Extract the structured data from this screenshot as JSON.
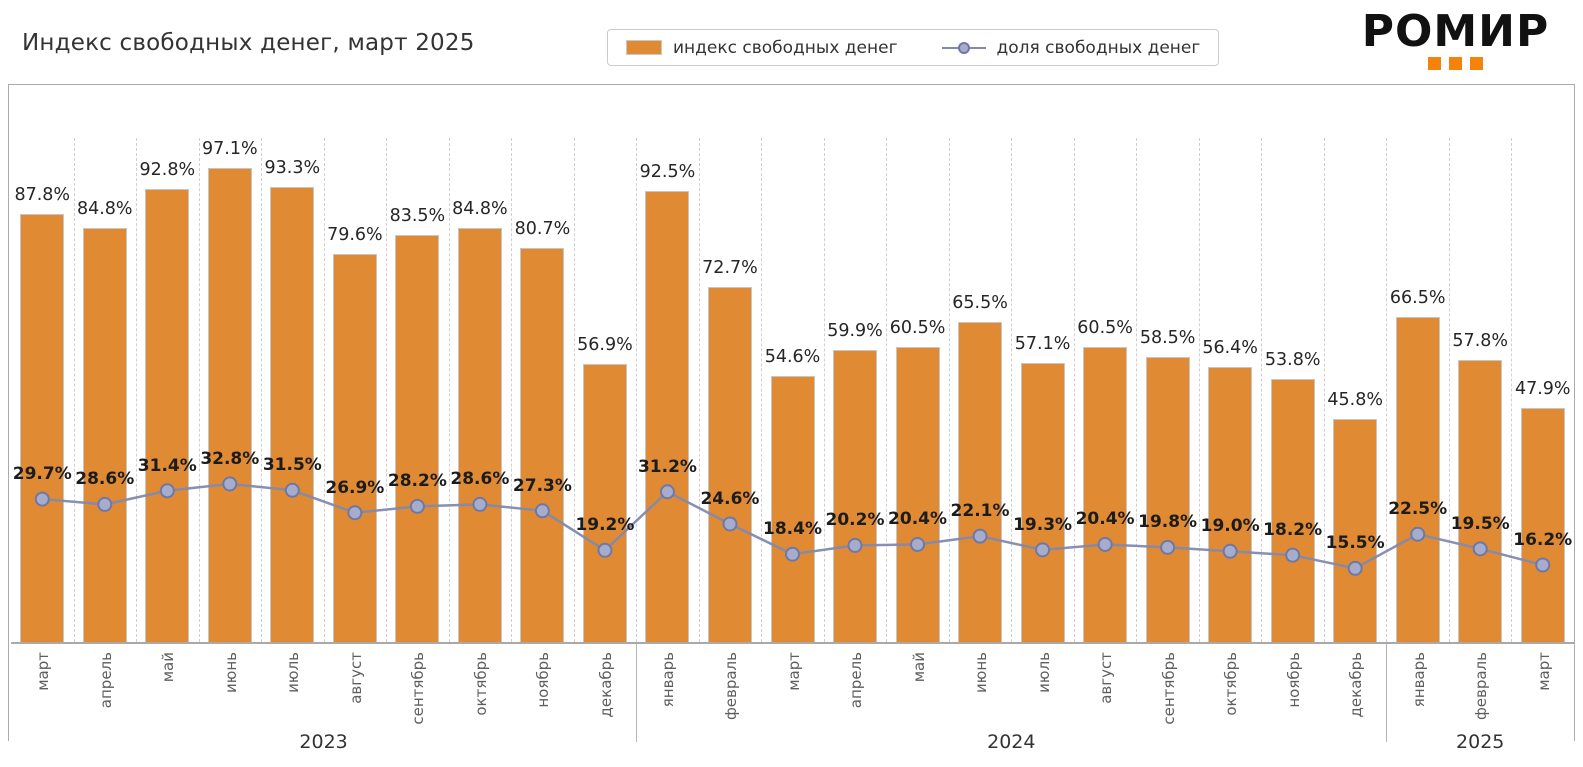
{
  "logo": {
    "text": "РОМИР",
    "accent_color": "#F5820B"
  },
  "chart_data": {
    "type": "combo-bar-line",
    "title": "Индекс свободных денег, март 2025",
    "value_suffix": "%",
    "grid": "vertical-dashed",
    "legend_position": "top-center",
    "ylim": [
      0,
      105
    ],
    "colors": {
      "bar": "#E08A33",
      "line": "#8289AF",
      "marker_fill": "#A6ADCC",
      "marker_stroke": "#6F78A4"
    },
    "groups": [
      {
        "year": "2023",
        "months": [
          "март",
          "апрель",
          "май",
          "июнь",
          "июль",
          "август",
          "сентябрь",
          "октябрь",
          "ноябрь",
          "декабрь"
        ]
      },
      {
        "year": "2024",
        "months": [
          "январь",
          "февраль",
          "март",
          "апрель",
          "май",
          "июнь",
          "июль",
          "август",
          "сентябрь",
          "октябрь",
          "ноябрь",
          "декабрь"
        ]
      },
      {
        "year": "2025",
        "months": [
          "январь",
          "февраль",
          "март"
        ]
      }
    ],
    "categories": [
      "март",
      "апрель",
      "май",
      "июнь",
      "июль",
      "август",
      "сентябрь",
      "октябрь",
      "ноябрь",
      "декабрь",
      "январь",
      "февраль",
      "март",
      "апрель",
      "май",
      "июнь",
      "июль",
      "август",
      "сентябрь",
      "октябрь",
      "ноябрь",
      "декабрь",
      "январь",
      "февраль",
      "март"
    ],
    "series": [
      {
        "name": "индекс свободных денег",
        "type": "bar",
        "values": [
          87.8,
          84.8,
          92.8,
          97.1,
          93.3,
          79.6,
          83.5,
          84.8,
          80.7,
          56.9,
          92.5,
          72.7,
          54.6,
          59.9,
          60.5,
          65.5,
          57.1,
          60.5,
          58.5,
          56.4,
          53.8,
          45.8,
          66.5,
          57.8,
          47.9
        ]
      },
      {
        "name": "доля свободных денег",
        "type": "line",
        "values": [
          29.7,
          28.6,
          31.4,
          32.8,
          31.5,
          26.9,
          28.2,
          28.6,
          27.3,
          19.2,
          31.2,
          24.6,
          18.4,
          20.2,
          20.4,
          22.1,
          19.3,
          20.4,
          19.8,
          19.0,
          18.2,
          15.5,
          22.5,
          19.5,
          16.2
        ]
      }
    ]
  }
}
